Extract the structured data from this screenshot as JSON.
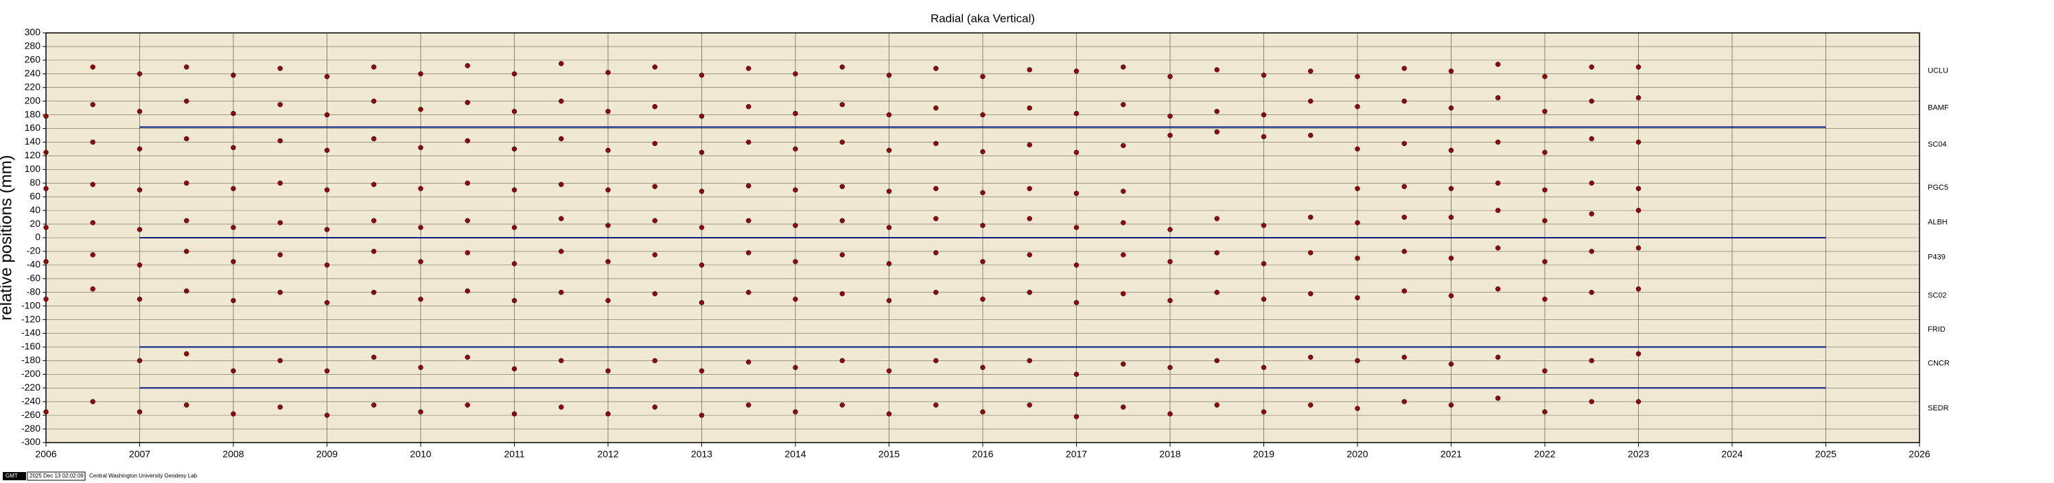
{
  "chart_data": {
    "type": "scatter",
    "title": "Radial (aka Vertical)",
    "y_label": "relative positions (mm)",
    "footer": [
      "GMT",
      "2025 Dec 13 02:02:09",
      "Central Washington University Geodesy Lab"
    ],
    "xlim": [
      2006,
      2026
    ],
    "ylim": [
      -300,
      300
    ],
    "xticks": [
      2006,
      2007,
      2008,
      2009,
      2010,
      2011,
      2012,
      2013,
      2014,
      2015,
      2016,
      2017,
      2018,
      2019,
      2020,
      2021,
      2022,
      2023,
      2024,
      2025,
      2026
    ],
    "yticks": [
      -300,
      -280,
      -260,
      -240,
      -220,
      -200,
      -180,
      -160,
      -140,
      -120,
      -100,
      -80,
      -60,
      -40,
      -20,
      0,
      20,
      40,
      60,
      80,
      100,
      120,
      140,
      160,
      180,
      200,
      220,
      240,
      260,
      280,
      300
    ],
    "grid": true,
    "background": "#efe8d2",
    "x": [
      2006.0,
      2006.5,
      2007.0,
      2007.5,
      2008.0,
      2008.5,
      2009.0,
      2009.5,
      2010.0,
      2010.5,
      2011.0,
      2011.5,
      2012.0,
      2012.5,
      2013.0,
      2013.5,
      2014.0,
      2014.5,
      2015.0,
      2015.5,
      2016.0,
      2016.5,
      2017.0,
      2017.5,
      2018.0,
      2018.5,
      2019.0,
      2019.5,
      2020.0,
      2020.5,
      2021.0,
      2021.5,
      2022.0,
      2022.5,
      2023.0
    ],
    "series": [
      {
        "name": "UCLU",
        "color": "#8b0a0a",
        "values": [
          null,
          250,
          240,
          250,
          238,
          248,
          236,
          250,
          240,
          252,
          240,
          255,
          242,
          250,
          238,
          248,
          240,
          250,
          238,
          248,
          236,
          246,
          244,
          250,
          236,
          246,
          238,
          244,
          236,
          248,
          244,
          254,
          236,
          250,
          250
        ]
      },
      {
        "name": "BAMF",
        "color": "#8b0a0a",
        "values": [
          178,
          195,
          185,
          200,
          182,
          195,
          180,
          200,
          188,
          198,
          185,
          200,
          185,
          192,
          178,
          192,
          182,
          195,
          180,
          190,
          180,
          190,
          182,
          195,
          178,
          185,
          180,
          200,
          192,
          200,
          190,
          205,
          185,
          200,
          205
        ]
      },
      {
        "name": "SC04",
        "color": "#8b0a0a",
        "values": [
          125,
          140,
          130,
          145,
          132,
          142,
          128,
          145,
          132,
          142,
          130,
          145,
          128,
          138,
          125,
          140,
          130,
          140,
          128,
          138,
          126,
          136,
          125,
          135,
          150,
          155,
          148,
          150,
          130,
          138,
          128,
          140,
          125,
          145,
          140
        ]
      },
      {
        "name": "PGC5",
        "color": "#8b0a0a",
        "values": [
          72,
          78,
          70,
          80,
          72,
          80,
          70,
          78,
          72,
          80,
          70,
          78,
          70,
          75,
          68,
          76,
          70,
          75,
          68,
          72,
          66,
          72,
          65,
          68,
          null,
          null,
          null,
          null,
          72,
          75,
          72,
          80,
          70,
          80,
          72
        ]
      },
      {
        "name": "ALBH",
        "color": "#8b0a0a",
        "values": [
          15,
          22,
          12,
          25,
          15,
          22,
          12,
          25,
          15,
          25,
          15,
          28,
          18,
          25,
          15,
          25,
          18,
          25,
          15,
          28,
          18,
          28,
          15,
          22,
          12,
          28,
          18,
          30,
          22,
          30,
          30,
          40,
          25,
          35,
          40
        ]
      },
      {
        "name": "P439",
        "color": "#8b0a0a",
        "values": [
          -35,
          -25,
          -40,
          -20,
          -35,
          -25,
          -40,
          -20,
          -35,
          -22,
          -38,
          -20,
          -35,
          -25,
          -40,
          -22,
          -35,
          -25,
          -38,
          -22,
          -35,
          -25,
          -40,
          -25,
          -35,
          -22,
          -38,
          -22,
          -30,
          -20,
          -30,
          -15,
          -35,
          -20,
          -15
        ]
      },
      {
        "name": "SC02",
        "color": "#8b0a0a",
        "values": [
          -90,
          -75,
          -90,
          -78,
          -92,
          -80,
          -95,
          -80,
          -90,
          -78,
          -92,
          -80,
          -92,
          -82,
          -95,
          -80,
          -90,
          -82,
          -92,
          -80,
          -90,
          -80,
          -95,
          -82,
          -92,
          -80,
          -90,
          -82,
          -88,
          -78,
          -85,
          -75,
          -90,
          -80,
          -75
        ]
      },
      {
        "name": "FRID",
        "color": "#8b0a0a",
        "values": [
          null,
          null,
          null,
          null,
          null,
          null,
          null,
          null,
          null,
          null,
          null,
          null,
          null,
          null,
          null,
          null,
          null,
          null,
          null,
          null,
          null,
          null,
          null,
          null,
          null,
          null,
          null,
          null,
          null,
          null,
          null,
          null,
          null,
          null,
          null
        ]
      },
      {
        "name": "CNCR",
        "color": "#8b0a0a",
        "values": [
          null,
          null,
          -180,
          -170,
          -195,
          -180,
          -195,
          -175,
          -190,
          -175,
          -192,
          -180,
          -195,
          -180,
          -195,
          -182,
          -190,
          -180,
          -195,
          -180,
          -190,
          -180,
          -200,
          -185,
          -190,
          -180,
          -190,
          -175,
          -180,
          -175,
          -185,
          -175,
          -195,
          -180,
          -170
        ]
      },
      {
        "name": "SEDR",
        "color": "#8b0a0a",
        "values": [
          -255,
          -240,
          -255,
          -245,
          -258,
          -248,
          -260,
          -245,
          -255,
          -245,
          -258,
          -248,
          -258,
          -248,
          -260,
          -245,
          -255,
          -245,
          -258,
          -245,
          -255,
          -245,
          -262,
          -248,
          -258,
          -245,
          -255,
          -245,
          -250,
          -240,
          -245,
          -235,
          -255,
          -240,
          -240
        ]
      }
    ],
    "reference_lines": [
      {
        "y": 162,
        "x": [
          2007,
          2025
        ],
        "color": "#0a1a80"
      },
      {
        "y": 0,
        "x": [
          2007,
          2025
        ],
        "color": "#0a1a80"
      },
      {
        "y": -160,
        "x": [
          2007,
          2025
        ],
        "color": "#0a1a80"
      },
      {
        "y": -220,
        "x": [
          2007,
          2025
        ],
        "color": "#0a1a80"
      }
    ]
  }
}
